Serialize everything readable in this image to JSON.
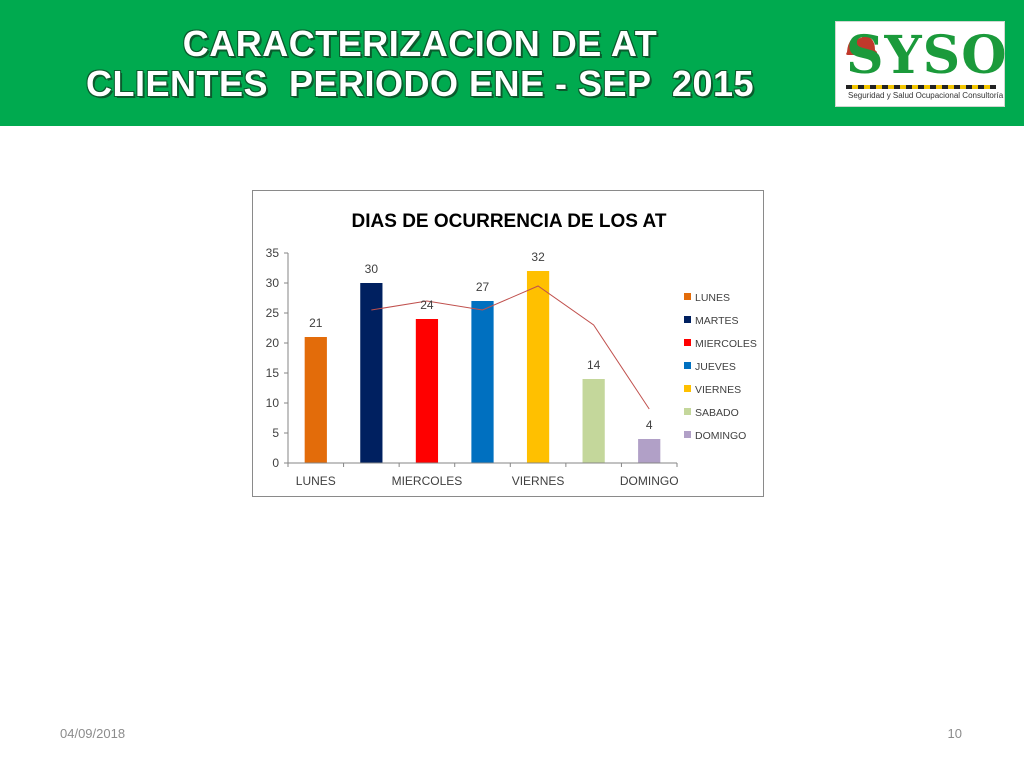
{
  "slide": {
    "title_line1": "CARACTERIZACION DE AT",
    "title_line2": "CLIENTES  PERIODO ENE - SEP  2015",
    "date": "04/09/2018",
    "page_number": "10",
    "header_color": "#00aa4f"
  },
  "logo": {
    "text": "SYSO",
    "tagline": "Seguridad y Salud Ocupacional Consultoría",
    "icon": "hard-hat-icon"
  },
  "chart_data": {
    "type": "bar",
    "title": "DIAS DE OCURRENCIA DE LOS AT",
    "categories": [
      "LUNES",
      "MARTES",
      "MIERCOLES",
      "JUEVES",
      "VIERNES",
      "SABADO",
      "DOMINGO"
    ],
    "x_tick_labels": [
      "LUNES",
      "",
      "MIERCOLES",
      "",
      "VIERNES",
      "",
      "DOMINGO"
    ],
    "values": [
      21,
      30,
      24,
      27,
      32,
      14,
      4
    ],
    "colors": [
      "#e36c0a",
      "#002060",
      "#ff0000",
      "#0070c0",
      "#ffc000",
      "#c4d79b",
      "#b1a0c7"
    ],
    "ylim": [
      0,
      35
    ],
    "yticks": [
      0,
      5,
      10,
      15,
      20,
      25,
      30,
      35
    ],
    "legend_position": "right",
    "grid": false,
    "trendline": {
      "type": "moving-average",
      "color": "#c0504d",
      "x": [
        "MARTES",
        "MIERCOLES",
        "JUEVES",
        "VIERNES",
        "SABADO",
        "DOMINGO"
      ],
      "values": [
        25.5,
        27,
        25.5,
        29.5,
        23,
        9
      ]
    }
  }
}
